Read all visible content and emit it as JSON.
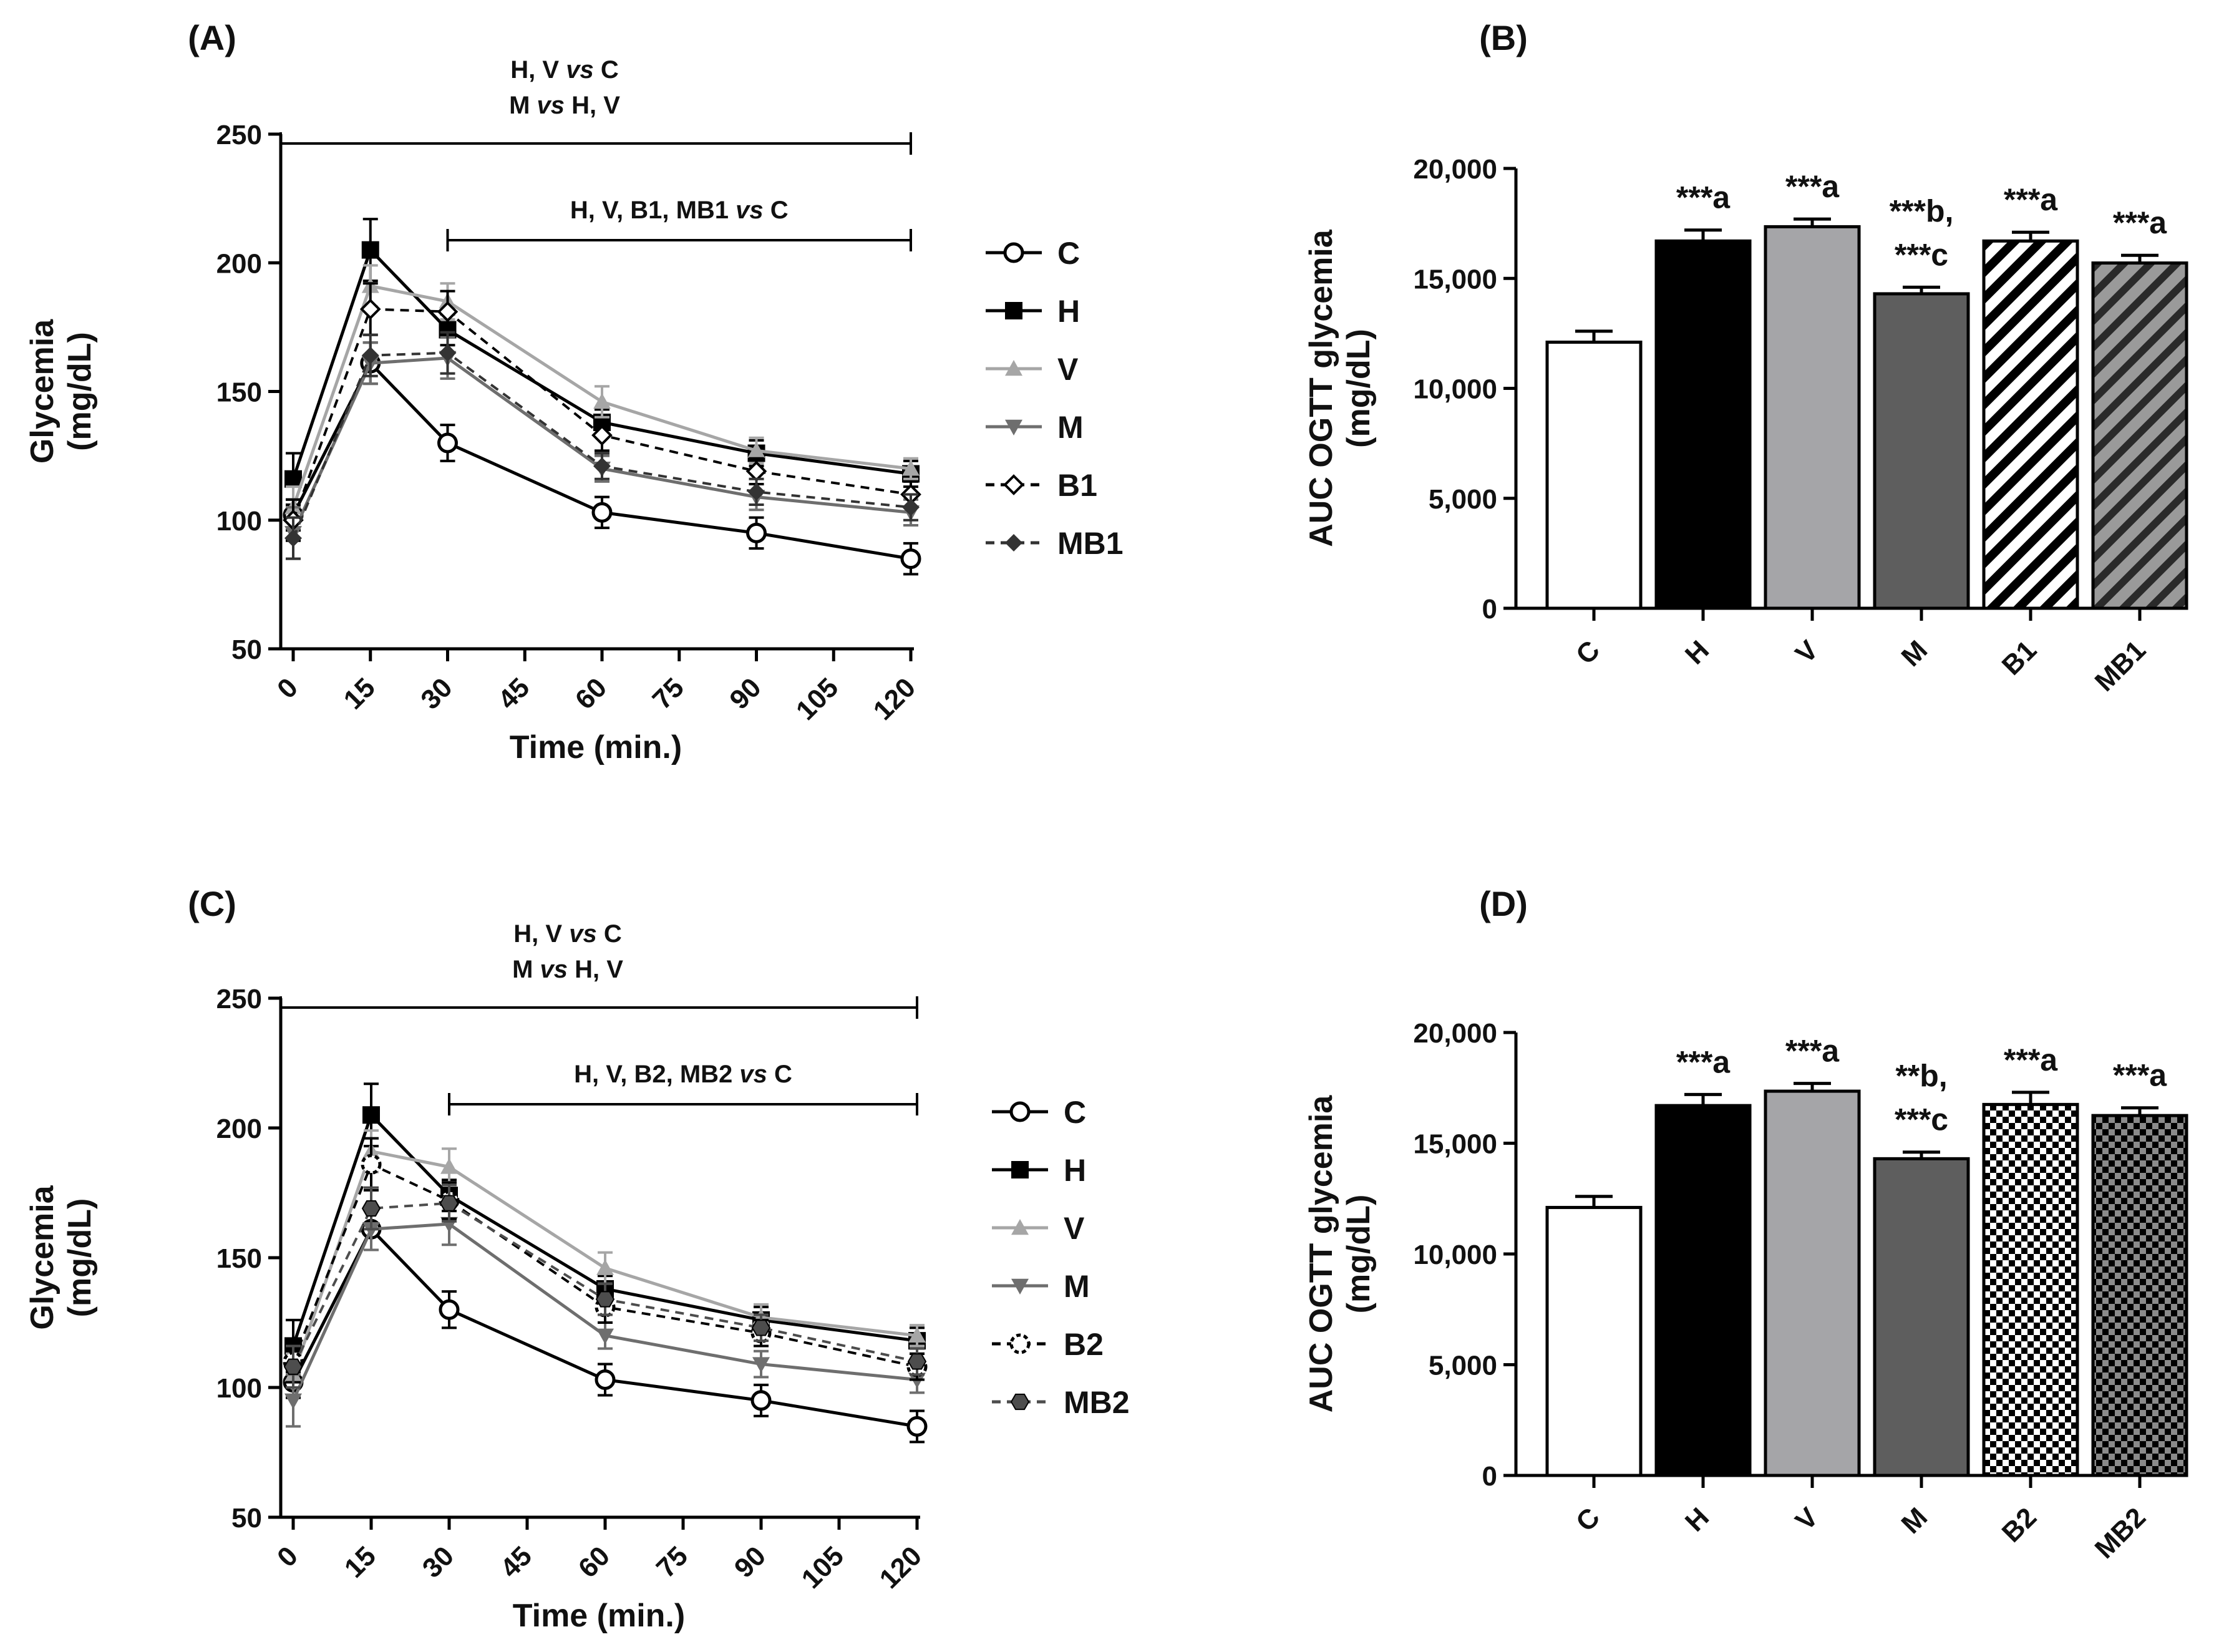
{
  "chart_data": [
    {
      "panel": "(A)",
      "type": "line",
      "title": "",
      "xlabel": "Time (min.)",
      "ylabel": [
        "Glycemia",
        "(mg/dL)"
      ],
      "xlim": [
        0,
        120
      ],
      "ylim": [
        50,
        250
      ],
      "xticks": [
        0,
        15,
        30,
        45,
        60,
        75,
        90,
        105,
        120
      ],
      "yticks": [
        50,
        100,
        150,
        200,
        250
      ],
      "x": [
        0,
        15,
        30,
        60,
        90,
        120
      ],
      "series": [
        {
          "name": "C",
          "values": [
            102,
            161,
            130,
            103,
            95,
            85
          ],
          "error": [
            6,
            8,
            7,
            6,
            6,
            6
          ],
          "color": "#000000",
          "marker": "circle-open",
          "dash": "solid"
        },
        {
          "name": "H",
          "values": [
            116,
            205,
            174,
            138,
            126,
            118
          ],
          "error": [
            10,
            12,
            6,
            5,
            5,
            5
          ],
          "color": "#000000",
          "marker": "square",
          "dash": "solid"
        },
        {
          "name": "V",
          "values": [
            105,
            191,
            185,
            146,
            127,
            120
          ],
          "error": [
            8,
            8,
            7,
            6,
            5,
            4
          ],
          "color": "#a6a6a6",
          "marker": "triangle-up",
          "dash": "solid"
        },
        {
          "name": "M",
          "values": [
            95,
            161,
            163,
            120,
            109,
            103
          ],
          "error": [
            10,
            8,
            8,
            5,
            5,
            5
          ],
          "color": "#6e6e6e",
          "marker": "triangle-down",
          "dash": "solid"
        },
        {
          "name": "B1",
          "values": [
            100,
            182,
            181,
            133,
            119,
            110
          ],
          "error": [
            8,
            10,
            8,
            6,
            5,
            5
          ],
          "color": "#000000",
          "marker": "diamond-open",
          "dash": "dashed"
        },
        {
          "name": "MB1",
          "values": [
            93,
            164,
            165,
            121,
            111,
            105
          ],
          "error": [
            8,
            8,
            8,
            5,
            5,
            5
          ],
          "color": "#333333",
          "marker": "diamond",
          "dash": "dashed"
        }
      ],
      "annotations": [
        {
          "lines": [
            "H, V ",
            "vs",
            " C"
          ],
          "line2": [
            "M ",
            "vs",
            " H, V"
          ],
          "from": 0,
          "to": 120
        },
        {
          "lines": [
            "H, V, B1, MB1 ",
            "vs",
            " C"
          ],
          "from": 30,
          "to": 120
        }
      ],
      "legend_position": "right"
    },
    {
      "panel": "(B)",
      "type": "bar",
      "title": "",
      "xlabel": "",
      "ylabel": [
        "AUC OGTT glycemia",
        "(mg/dL)"
      ],
      "ylim": [
        0,
        20000
      ],
      "yticks": [
        0,
        5000,
        10000,
        15000,
        20000
      ],
      "ytick_labels": [
        "0",
        "5,000",
        "10,000",
        "15,000",
        "20,000"
      ],
      "categories": [
        "C",
        "H",
        "V",
        "M",
        "B1",
        "MB1"
      ],
      "values": [
        12100,
        16700,
        17350,
        14300,
        16700,
        15700
      ],
      "error": [
        500,
        500,
        350,
        300,
        400,
        350
      ],
      "fills": [
        "white",
        "black",
        "gray-light",
        "gray-dark",
        "diagonal-hatch",
        "diagonal-hatch-gray"
      ],
      "significance": [
        [
          ""
        ],
        [
          "***a"
        ],
        [
          "***a"
        ],
        [
          "***b,",
          "***c"
        ],
        [
          "***a"
        ],
        [
          "***a"
        ]
      ]
    },
    {
      "panel": "(C)",
      "type": "line",
      "title": "",
      "xlabel": "Time (min.)",
      "ylabel": [
        "Glycemia",
        "(mg/dL)"
      ],
      "xlim": [
        0,
        120
      ],
      "ylim": [
        50,
        250
      ],
      "xticks": [
        0,
        15,
        30,
        45,
        60,
        75,
        90,
        105,
        120
      ],
      "yticks": [
        50,
        100,
        150,
        200,
        250
      ],
      "x": [
        0,
        15,
        30,
        60,
        90,
        120
      ],
      "series": [
        {
          "name": "C",
          "values": [
            102,
            161,
            130,
            103,
            95,
            85
          ],
          "error": [
            6,
            8,
            7,
            6,
            6,
            6
          ],
          "color": "#000000",
          "marker": "circle-open",
          "dash": "solid"
        },
        {
          "name": "H",
          "values": [
            116,
            205,
            174,
            138,
            126,
            118
          ],
          "error": [
            10,
            12,
            6,
            5,
            5,
            5
          ],
          "color": "#000000",
          "marker": "square",
          "dash": "solid"
        },
        {
          "name": "V",
          "values": [
            105,
            191,
            185,
            146,
            127,
            120
          ],
          "error": [
            8,
            8,
            7,
            6,
            5,
            4
          ],
          "color": "#a6a6a6",
          "marker": "triangle-up",
          "dash": "solid"
        },
        {
          "name": "M",
          "values": [
            95,
            161,
            163,
            120,
            109,
            103
          ],
          "error": [
            10,
            8,
            8,
            5,
            5,
            5
          ],
          "color": "#6e6e6e",
          "marker": "triangle-down",
          "dash": "solid"
        },
        {
          "name": "B2",
          "values": [
            110,
            186,
            172,
            131,
            121,
            108
          ],
          "error": [
            8,
            10,
            7,
            6,
            5,
            5
          ],
          "color": "#000000",
          "marker": "circle-dotted",
          "dash": "dashed"
        },
        {
          "name": "MB2",
          "values": [
            108,
            169,
            171,
            134,
            123,
            110
          ],
          "error": [
            8,
            8,
            7,
            6,
            5,
            5
          ],
          "color": "#4d4d4d",
          "marker": "hexagon",
          "dash": "dashed"
        }
      ],
      "annotations": [
        {
          "lines": [
            "H, V ",
            "vs",
            " C"
          ],
          "line2": [
            "M ",
            "vs",
            " H, V"
          ],
          "from": 0,
          "to": 120
        },
        {
          "lines": [
            "H, V, B2, MB2 ",
            "vs",
            " C"
          ],
          "from": 30,
          "to": 120
        }
      ],
      "legend_position": "right"
    },
    {
      "panel": "(D)",
      "type": "bar",
      "title": "",
      "xlabel": "",
      "ylabel": [
        "AUC OGTT glycemia",
        "(mg/dL)"
      ],
      "ylim": [
        0,
        20000
      ],
      "yticks": [
        0,
        5000,
        10000,
        15000,
        20000
      ],
      "ytick_labels": [
        "0",
        "5,000",
        "10,000",
        "15,000",
        "20,000"
      ],
      "categories": [
        "C",
        "H",
        "V",
        "M",
        "B2",
        "MB2"
      ],
      "values": [
        12100,
        16700,
        17350,
        14300,
        16750,
        16250
      ],
      "error": [
        500,
        500,
        350,
        300,
        550,
        350
      ],
      "fills": [
        "white",
        "black",
        "gray-light",
        "gray-dark",
        "checker",
        "checker-dark"
      ],
      "significance": [
        [
          ""
        ],
        [
          "***a"
        ],
        [
          "***a"
        ],
        [
          "**b,",
          "***c"
        ],
        [
          "***a"
        ],
        [
          "***a"
        ]
      ]
    }
  ]
}
